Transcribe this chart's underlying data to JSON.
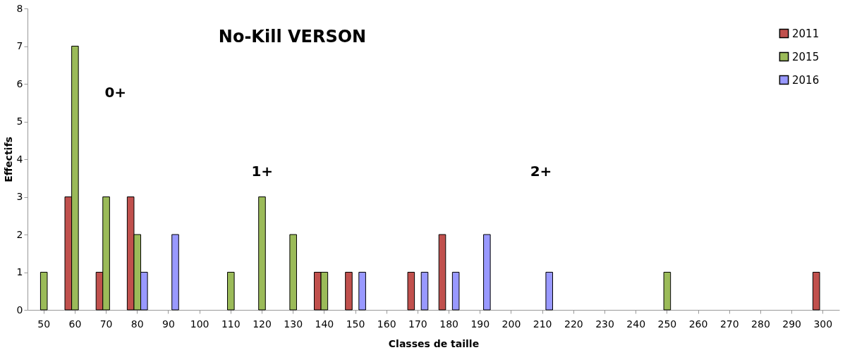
{
  "chart_data": {
    "type": "bar",
    "title": "No-Kill VERSON",
    "xlabel": "Classes de taille",
    "ylabel": "Effectifs",
    "categories": [
      "50",
      "60",
      "70",
      "80",
      "90",
      "100",
      "110",
      "120",
      "130",
      "140",
      "150",
      "160",
      "170",
      "180",
      "190",
      "200",
      "210",
      "220",
      "230",
      "240",
      "250",
      "260",
      "270",
      "280",
      "290",
      "300"
    ],
    "series": [
      {
        "name": "2011",
        "color": "#c0504d",
        "values": [
          null,
          3,
          1,
          3,
          null,
          null,
          null,
          null,
          null,
          1,
          1,
          null,
          1,
          2,
          null,
          null,
          null,
          null,
          null,
          null,
          null,
          null,
          null,
          null,
          null,
          1
        ]
      },
      {
        "name": "2015",
        "color": "#9bbb59",
        "values": [
          1,
          7,
          3,
          2,
          null,
          null,
          1,
          3,
          2,
          1,
          null,
          null,
          null,
          null,
          null,
          null,
          null,
          null,
          null,
          null,
          1,
          null,
          null,
          null,
          null,
          null
        ]
      },
      {
        "name": "2016",
        "color": "#9999ff",
        "values": [
          null,
          null,
          null,
          1,
          2,
          null,
          null,
          null,
          null,
          null,
          1,
          null,
          1,
          1,
          2,
          null,
          1,
          null,
          null,
          null,
          null,
          null,
          null,
          null,
          null,
          null
        ]
      }
    ],
    "ylim": [
      0,
      8
    ],
    "yticks": [
      0,
      1,
      2,
      3,
      4,
      5,
      6,
      7,
      8
    ],
    "grid": false,
    "legend": "top right",
    "annotations": [
      "0+",
      "1+",
      "2+"
    ]
  }
}
